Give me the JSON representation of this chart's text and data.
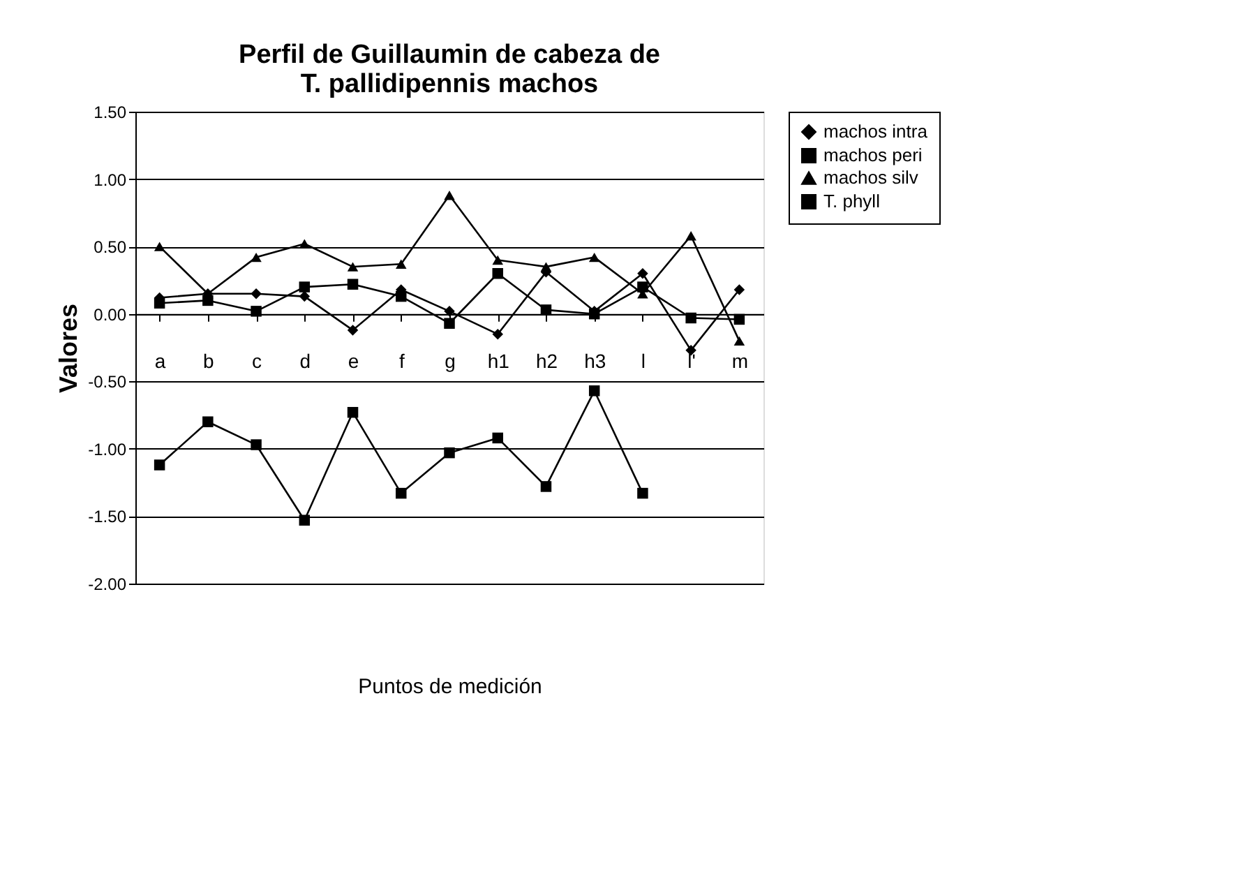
{
  "chart_data": {
    "type": "line",
    "title": [
      "Perfil de Guillaumin de cabeza de",
      "T. pallidipennis machos"
    ],
    "xlabel": "Puntos de medición",
    "ylabel": "Valores",
    "categories": [
      "a",
      "b",
      "c",
      "d",
      "e",
      "f",
      "g",
      "h1",
      "h2",
      "h3",
      "l",
      "l'",
      "m"
    ],
    "series": [
      {
        "name": "machos intra",
        "color": "#000000",
        "marker": "diamond",
        "values": [
          0.12,
          0.15,
          0.15,
          0.13,
          -0.12,
          0.18,
          0.02,
          -0.15,
          0.31,
          0.02,
          0.3,
          -0.27,
          0.18
        ]
      },
      {
        "name": "machos peri",
        "color": "#000000",
        "marker": "square",
        "values": [
          0.08,
          0.1,
          0.02,
          0.2,
          0.22,
          0.13,
          -0.07,
          0.3,
          0.03,
          0.0,
          0.2,
          -0.03,
          -0.04
        ]
      },
      {
        "name": "machos silv",
        "color": "#000000",
        "marker": "triangle",
        "values": [
          0.5,
          0.15,
          0.42,
          0.52,
          0.35,
          0.37,
          0.88,
          0.4,
          0.35,
          0.42,
          0.15,
          0.58,
          -0.2
        ]
      },
      {
        "name": "T. phyll",
        "color": "#000000",
        "marker": "square",
        "values": [
          -1.12,
          -0.8,
          -0.97,
          -1.53,
          -0.73,
          -1.33,
          -1.03,
          -0.92,
          -1.28,
          -0.57,
          -1.33,
          null,
          null
        ]
      }
    ],
    "ylim": [
      -2.0,
      1.5
    ],
    "yticks": [
      {
        "value": -2.0,
        "label": "-2.00"
      },
      {
        "value": -1.5,
        "label": "-1.50"
      },
      {
        "value": -1.0,
        "label": "-1.00"
      },
      {
        "value": -0.5,
        "label": "-0.50"
      },
      {
        "value": 0.0,
        "label": "0.00"
      },
      {
        "value": 0.5,
        "label": "0.50"
      },
      {
        "value": 1.0,
        "label": "1.00"
      },
      {
        "value": 1.5,
        "label": "1.50"
      }
    ],
    "grid": "y",
    "legend": "right",
    "line_style": "solid"
  }
}
